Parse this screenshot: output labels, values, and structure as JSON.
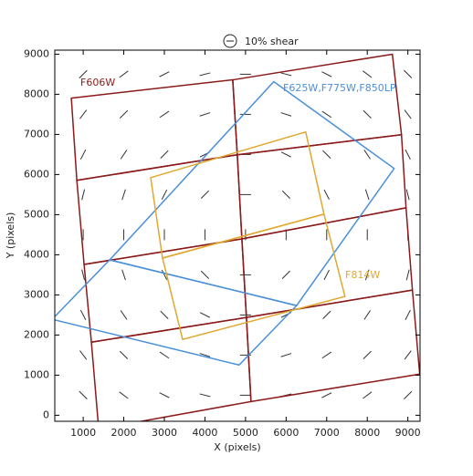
{
  "chart_data": {
    "type": "quiver",
    "scale_label": "10% shear",
    "xlabel": "X (pixels)",
    "ylabel": "Y (pixels)",
    "xlim": [
      300,
      9300
    ],
    "ylim": [
      -150,
      9100
    ],
    "xticks": [
      1000,
      2000,
      3000,
      4000,
      5000,
      6000,
      7000,
      8000,
      9000
    ],
    "yticks": [
      0,
      1000,
      2000,
      3000,
      4000,
      5000,
      6000,
      7000,
      8000,
      9000
    ],
    "x": [
      1000,
      2000,
      3000,
      4000,
      5000,
      6000,
      7000,
      8000,
      9000
    ],
    "y": [
      500,
      1500,
      2500,
      3500,
      4500,
      5500,
      6500,
      7500,
      8500
    ],
    "angle": [
      [
        135,
        143,
        153,
        166,
        0,
        14,
        27,
        37,
        45
      ],
      [
        127,
        135,
        146,
        162,
        0,
        18,
        34,
        45,
        53
      ],
      [
        117,
        124,
        135,
        153,
        0,
        27,
        45,
        56,
        63
      ],
      [
        104,
        108,
        117,
        135,
        0,
        45,
        63,
        72,
        76
      ],
      [
        90,
        90,
        90,
        90,
        90,
        90,
        90,
        90,
        90
      ],
      [
        76,
        72,
        63,
        45,
        0,
        135,
        117,
        108,
        104
      ],
      [
        63,
        56,
        45,
        27,
        0,
        153,
        135,
        124,
        117
      ],
      [
        53,
        45,
        34,
        18,
        0,
        162,
        146,
        135,
        127
      ],
      [
        45,
        37,
        27,
        14,
        0,
        166,
        153,
        143,
        135
      ]
    ],
    "stick_color": "#333333",
    "footprints": [
      {
        "name": "F606W",
        "color": "#8b1a1a",
        "chips": [
          [
            [
              708,
              7905
            ],
            [
              4685,
              8360
            ],
            [
              4797,
              6492
            ],
            [
              843,
              5855
            ]
          ],
          [
            [
              843,
              5855
            ],
            [
              4797,
              6492
            ],
            [
              4910,
              4396
            ],
            [
              1022,
              3759
            ]
          ],
          [
            [
              1022,
              3759
            ],
            [
              4910,
              4396
            ],
            [
              5022,
              2437
            ],
            [
              1202,
              1822
            ]
          ],
          [
            [
              1202,
              1822
            ],
            [
              5022,
              2437
            ],
            [
              5135,
              342
            ],
            [
              1382,
              -342
            ]
          ],
          [
            [
              4685,
              8360
            ],
            [
              8618,
              8998
            ],
            [
              8843,
              6993
            ],
            [
              4797,
              6492
            ]
          ],
          [
            [
              4797,
              6492
            ],
            [
              8843,
              6993
            ],
            [
              8955,
              5171
            ],
            [
              4910,
              4396
            ]
          ],
          [
            [
              4910,
              4396
            ],
            [
              8955,
              5171
            ],
            [
              9112,
              3121
            ],
            [
              5022,
              2437
            ]
          ],
          [
            [
              5022,
              2437
            ],
            [
              9112,
              3121
            ],
            [
              9292,
              1025
            ],
            [
              5135,
              342
            ]
          ]
        ]
      },
      {
        "name": "F625W,F775W,F850LP",
        "color": "#4a90d9",
        "chips": [
          [
            [
              1652,
              3873
            ],
            [
              5696,
              8315
            ],
            [
              8662,
              6151
            ],
            [
              6258,
              2734
            ]
          ],
          [
            [
              236,
              2392
            ],
            [
              1652,
              3873
            ],
            [
              6258,
              2734
            ],
            [
              4842,
              1253
            ]
          ]
        ]
      },
      {
        "name": "F814W",
        "color": "#e0a82e",
        "chips": [
          [
            [
              2663,
              5923
            ],
            [
              6483,
              7062
            ],
            [
              6933,
              5012
            ],
            [
              2955,
              3918
            ]
          ],
          [
            [
              2955,
              3918
            ],
            [
              6933,
              5012
            ],
            [
              7450,
              2961
            ],
            [
              3449,
              1891
            ]
          ]
        ]
      }
    ]
  }
}
